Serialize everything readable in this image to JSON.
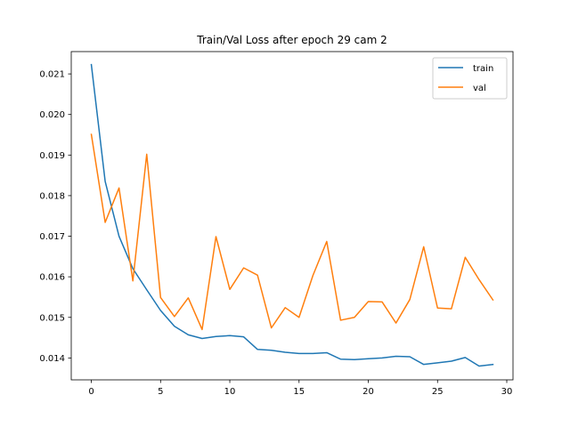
{
  "chart_data": {
    "type": "line",
    "title": "Train/Val Loss after epoch 29 cam 2",
    "xlabel": "",
    "ylabel": "",
    "xlim": [
      -1.45,
      30.45
    ],
    "ylim": [
      0.01346,
      0.02155
    ],
    "xticks": [
      0,
      5,
      10,
      15,
      20,
      25,
      30
    ],
    "xtick_labels": [
      "0",
      "5",
      "10",
      "15",
      "20",
      "25",
      "30"
    ],
    "yticks": [
      0.014,
      0.015,
      0.016,
      0.017,
      0.018,
      0.019,
      0.02,
      0.021
    ],
    "ytick_labels": [
      "0.014",
      "0.015",
      "0.016",
      "0.017",
      "0.018",
      "0.019",
      "0.020",
      "0.021"
    ],
    "grid": false,
    "legend_position": "top-right",
    "x": [
      0,
      1,
      2,
      3,
      4,
      5,
      6,
      7,
      8,
      9,
      10,
      11,
      12,
      13,
      14,
      15,
      16,
      17,
      18,
      19,
      20,
      21,
      22,
      23,
      24,
      25,
      26,
      27,
      28,
      29
    ],
    "series": [
      {
        "name": "train",
        "color": "#1f77b4",
        "values": [
          0.02123,
          0.01835,
          0.017,
          0.0162,
          0.01568,
          0.01517,
          0.01478,
          0.01457,
          0.01448,
          0.01453,
          0.01455,
          0.01452,
          0.01421,
          0.01419,
          0.01414,
          0.01411,
          0.01411,
          0.01413,
          0.01397,
          0.01396,
          0.01398,
          0.014,
          0.01404,
          0.01403,
          0.01384,
          0.01388,
          0.01392,
          0.01401,
          0.0138,
          0.01384
        ]
      },
      {
        "name": "val",
        "color": "#ff7f0e",
        "values": [
          0.01951,
          0.01734,
          0.01819,
          0.0159,
          0.01902,
          0.01549,
          0.01502,
          0.01548,
          0.0147,
          0.01699,
          0.01569,
          0.01622,
          0.01604,
          0.01474,
          0.01524,
          0.015,
          0.01603,
          0.01687,
          0.01493,
          0.015,
          0.01539,
          0.01538,
          0.01486,
          0.01544,
          0.01674,
          0.01523,
          0.01521,
          0.01648,
          0.01593,
          0.01543
        ]
      }
    ]
  }
}
